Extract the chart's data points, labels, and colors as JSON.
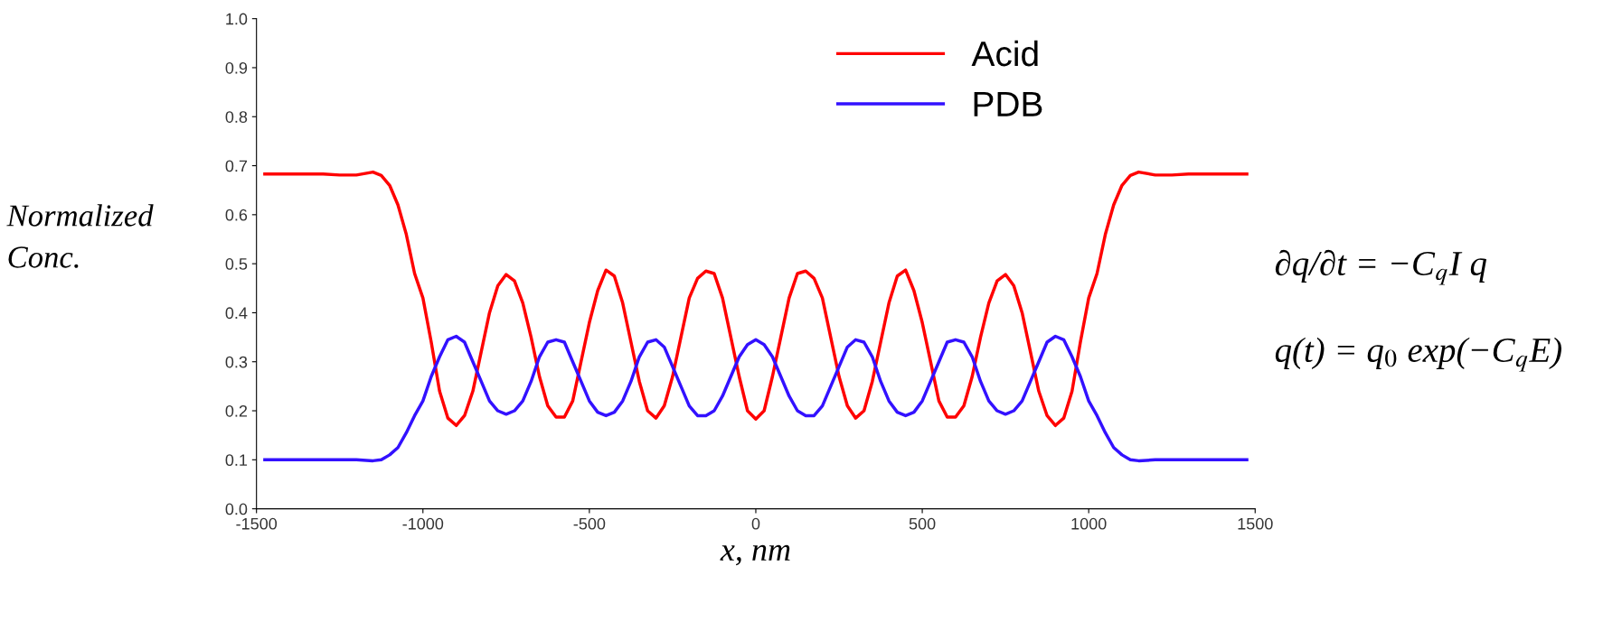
{
  "chart_data": {
    "type": "line",
    "xlabel": "x, nm",
    "ylabel": "Normalized\nConc.",
    "x": [
      -1475,
      -1400,
      -1300,
      -1250,
      -1200,
      -1150,
      -1125,
      -1100,
      -1075,
      -1050,
      -1025,
      -1000,
      -975,
      -950,
      -925,
      -900,
      -875,
      -850,
      -825,
      -800,
      -775,
      -750,
      -725,
      -700,
      -675,
      -650,
      -625,
      -600,
      -575,
      -550,
      -525,
      -500,
      -475,
      -450,
      -425,
      -400,
      -375,
      -350,
      -325,
      -300,
      -275,
      -250,
      -225,
      -200,
      -175,
      -150,
      -125,
      -100,
      -75,
      -50,
      -25,
      0,
      25,
      50,
      75,
      100,
      125,
      150,
      175,
      200,
      225,
      250,
      275,
      300,
      325,
      350,
      375,
      400,
      425,
      450,
      475,
      500,
      525,
      550,
      575,
      600,
      625,
      650,
      675,
      700,
      725,
      750,
      775,
      800,
      825,
      850,
      875,
      900,
      925,
      950,
      975,
      1000,
      1025,
      1050,
      1075,
      1100,
      1125,
      1150,
      1200,
      1250,
      1300,
      1400,
      1475
    ],
    "series": [
      {
        "name": "Acid",
        "color": "#ff0000",
        "values": [
          0.683,
          0.683,
          0.683,
          0.681,
          0.681,
          0.687,
          0.68,
          0.66,
          0.62,
          0.56,
          0.48,
          0.43,
          0.34,
          0.24,
          0.185,
          0.17,
          0.19,
          0.24,
          0.32,
          0.4,
          0.455,
          0.478,
          0.465,
          0.42,
          0.35,
          0.27,
          0.21,
          0.187,
          0.187,
          0.22,
          0.3,
          0.38,
          0.445,
          0.487,
          0.475,
          0.42,
          0.34,
          0.26,
          0.2,
          0.185,
          0.21,
          0.27,
          0.35,
          0.43,
          0.47,
          0.485,
          0.48,
          0.43,
          0.35,
          0.27,
          0.2,
          0.183,
          0.2,
          0.27,
          0.35,
          0.43,
          0.48,
          0.485,
          0.47,
          0.43,
          0.35,
          0.27,
          0.21,
          0.185,
          0.2,
          0.26,
          0.34,
          0.42,
          0.475,
          0.487,
          0.445,
          0.38,
          0.3,
          0.22,
          0.187,
          0.187,
          0.21,
          0.27,
          0.35,
          0.42,
          0.465,
          0.478,
          0.455,
          0.4,
          0.32,
          0.24,
          0.19,
          0.17,
          0.185,
          0.24,
          0.34,
          0.43,
          0.48,
          0.56,
          0.62,
          0.66,
          0.68,
          0.687,
          0.681,
          0.681,
          0.683,
          0.683,
          0.683
        ]
      },
      {
        "name": "PDB",
        "color": "#3311ff",
        "values": [
          0.1,
          0.1,
          0.1,
          0.1,
          0.1,
          0.098,
          0.1,
          0.11,
          0.125,
          0.155,
          0.19,
          0.22,
          0.27,
          0.31,
          0.345,
          0.352,
          0.34,
          0.3,
          0.26,
          0.22,
          0.2,
          0.193,
          0.2,
          0.22,
          0.26,
          0.31,
          0.34,
          0.345,
          0.34,
          0.3,
          0.26,
          0.22,
          0.197,
          0.19,
          0.197,
          0.22,
          0.26,
          0.31,
          0.34,
          0.345,
          0.33,
          0.29,
          0.25,
          0.21,
          0.19,
          0.19,
          0.2,
          0.23,
          0.27,
          0.31,
          0.335,
          0.345,
          0.335,
          0.31,
          0.27,
          0.23,
          0.2,
          0.19,
          0.19,
          0.21,
          0.25,
          0.29,
          0.33,
          0.345,
          0.34,
          0.31,
          0.26,
          0.22,
          0.197,
          0.19,
          0.197,
          0.22,
          0.26,
          0.3,
          0.34,
          0.345,
          0.34,
          0.31,
          0.26,
          0.22,
          0.2,
          0.193,
          0.2,
          0.22,
          0.26,
          0.3,
          0.34,
          0.352,
          0.345,
          0.31,
          0.27,
          0.22,
          0.19,
          0.155,
          0.125,
          0.11,
          0.1,
          0.098,
          0.1,
          0.1,
          0.1,
          0.1,
          0.1
        ]
      }
    ],
    "xlim": [
      -1500,
      1500
    ],
    "xticks": [
      -1500,
      -1000,
      -500,
      0,
      500,
      1000,
      1500
    ],
    "ylim": [
      0,
      1
    ],
    "yticks": [
      {
        "value": 0,
        "label": "0.0"
      },
      {
        "value": 0.1,
        "label": "0.1"
      },
      {
        "value": 0.2,
        "label": "0.2"
      },
      {
        "value": 0.3,
        "label": "0.3"
      },
      {
        "value": 0.4,
        "label": "0.4"
      },
      {
        "value": 0.5,
        "label": "0.5"
      },
      {
        "value": 0.6,
        "label": "0.6"
      },
      {
        "value": 0.7,
        "label": "0.7"
      },
      {
        "value": 0.8,
        "label": "0.8"
      },
      {
        "value": 0.9,
        "label": "0.9"
      },
      {
        "value": 1,
        "label": "1.0"
      }
    ],
    "legend": "top right",
    "marker": "none",
    "line_style": "solid",
    "annotations": [
      "∂q/∂t = −C$_{q}$I q",
      "q(t) = q$_{0}$ exp(−C$_{q}$E)"
    ]
  }
}
